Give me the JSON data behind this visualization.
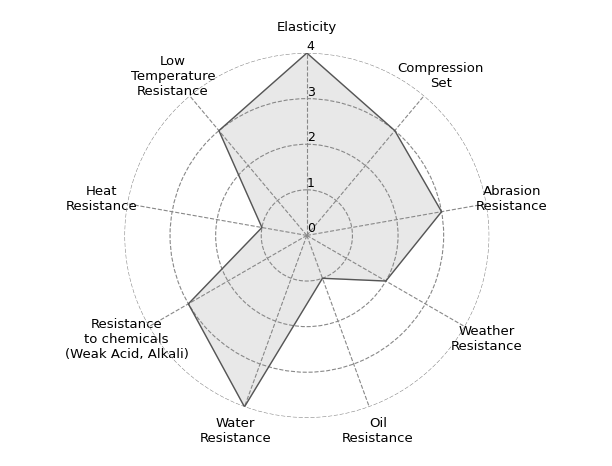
{
  "categories": [
    "Elasticity",
    "Compression\nSet",
    "Abrasion\nResistance",
    "Weather\nResistance",
    "Oil\nResistance",
    "Water\nResistance",
    "Resistance\nto chemicals\n(Weak Acid, Alkali)",
    "Heat\nResistance",
    "Low\nTemperature\nResistance"
  ],
  "values": [
    4,
    3,
    3,
    2,
    1,
    4,
    3,
    1,
    3
  ],
  "r_max": 4,
  "r_ticks": [
    0,
    1,
    2,
    3,
    4
  ],
  "fill_color": "#cccccc",
  "fill_alpha": 0.45,
  "line_color": "#555555",
  "grid_color": "#888888",
  "background_color": "#ffffff",
  "label_fontsize": 9.5,
  "tick_fontsize": 9
}
